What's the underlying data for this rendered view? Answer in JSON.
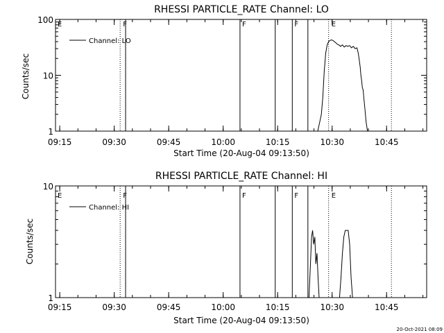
{
  "charts": [
    {
      "title": "RHESSI PARTICLE_RATE Channel: LO",
      "ylabel": "Counts/sec",
      "xlabel": "Start Time (20-Aug-04 09:13:50)",
      "legend": "Channel: LO",
      "ytick_labels": [
        "1",
        "10",
        "100"
      ],
      "xtick_labels": [
        "09:15",
        "09:30",
        "09:45",
        "10:00",
        "10:15",
        "10:30",
        "10:45"
      ]
    },
    {
      "title": "RHESSI PARTICLE_RATE Channel: HI",
      "ylabel": "Counts/sec",
      "xlabel": "Start Time (20-Aug-04 09:13:50)",
      "legend": "Channel: HI",
      "ytick_labels": [
        "1",
        "10"
      ],
      "xtick_labels": [
        "09:15",
        "09:30",
        "09:45",
        "10:00",
        "10:15",
        "10:30",
        "10:45"
      ]
    }
  ],
  "footer": "20-Oct-2021 08:09",
  "chart_data": [
    {
      "type": "line",
      "title": "RHESSI PARTICLE_RATE Channel: LO",
      "xlabel": "Start Time (20-Aug-04 09:13:50)",
      "ylabel": "Counts/sec",
      "x_unit": "minutes after 09:13:50",
      "xlim": [
        0,
        102.2
      ],
      "ylim": [
        1,
        100
      ],
      "yscale": "log",
      "xticks": [
        {
          "x": 1.17,
          "label": "09:15"
        },
        {
          "x": 16.17,
          "label": "09:30"
        },
        {
          "x": 31.17,
          "label": "09:45"
        },
        {
          "x": 46.17,
          "label": "10:00"
        },
        {
          "x": 61.17,
          "label": "10:15"
        },
        {
          "x": 76.17,
          "label": "10:30"
        },
        {
          "x": 91.17,
          "label": "10:45"
        }
      ],
      "yticks": [
        1,
        10,
        100
      ],
      "legend": {
        "position": "top-left",
        "entries": [
          "Channel: LO"
        ]
      },
      "series": [
        {
          "name": "Channel: LO",
          "x": [
            72.2,
            72.8,
            73.2,
            73.6,
            74.0,
            74.4,
            74.8,
            75.2,
            75.6,
            76.0,
            76.4,
            76.8,
            77.2,
            77.6,
            78.0,
            78.5,
            79.0,
            79.5,
            80.0,
            80.5,
            81.0,
            81.5,
            82.0,
            82.5,
            83.0,
            83.3,
            83.6,
            83.9,
            84.1,
            84.3,
            84.5,
            84.7,
            84.9,
            85.2,
            85.5,
            85.9
          ],
          "y": [
            1.0,
            1.5,
            2.0,
            4.0,
            12,
            25,
            35,
            40,
            42,
            43,
            42,
            40,
            38,
            36,
            35,
            33,
            35,
            32,
            34,
            33,
            34,
            31,
            33,
            30,
            31,
            26,
            20,
            14,
            10,
            8,
            6.0,
            5.5,
            4.0,
            2.5,
            1.5,
            1.0
          ]
        }
      ],
      "markers": {
        "solid_lines": [
          19.3,
          50.8,
          60.5,
          65.2,
          69.5
        ],
        "dotted_lines": [
          17.8,
          75.2,
          92.5
        ],
        "letters": [
          {
            "x": 0.2,
            "text": "E"
          },
          {
            "x": 18.2,
            "text": "F"
          },
          {
            "x": 51.0,
            "text": "F"
          },
          {
            "x": 65.4,
            "text": "F"
          },
          {
            "x": 75.6,
            "text": "E"
          }
        ]
      }
    },
    {
      "type": "line",
      "title": "RHESSI PARTICLE_RATE Channel: HI",
      "xlabel": "Start Time (20-Aug-04 09:13:50)",
      "ylabel": "Counts/sec",
      "x_unit": "minutes after 09:13:50",
      "xlim": [
        0,
        102.2
      ],
      "ylim": [
        1,
        10
      ],
      "yscale": "log",
      "xticks": [
        {
          "x": 1.17,
          "label": "09:15"
        },
        {
          "x": 16.17,
          "label": "09:30"
        },
        {
          "x": 31.17,
          "label": "09:45"
        },
        {
          "x": 46.17,
          "label": "10:00"
        },
        {
          "x": 61.17,
          "label": "10:15"
        },
        {
          "x": 76.17,
          "label": "10:30"
        },
        {
          "x": 91.17,
          "label": "10:45"
        }
      ],
      "yticks": [
        1,
        10
      ],
      "legend": {
        "position": "top-left",
        "entries": [
          "Channel: HI"
        ]
      },
      "series": [
        {
          "name": "Channel: HI",
          "x": [
            69.8,
            70.2,
            70.5,
            70.8,
            71.1,
            71.4,
            71.7,
            72.0,
            72.3,
            72.6
          ],
          "y": [
            1.0,
            2.0,
            3.5,
            4.0,
            3.0,
            3.5,
            2.0,
            2.5,
            1.5,
            1.0
          ]
        },
        {
          "name": "",
          "x": [
            78.2,
            78.6,
            79.0,
            79.4,
            79.8,
            80.2,
            80.6,
            81.0,
            81.4,
            81.8
          ],
          "y": [
            1.0,
            1.5,
            2.5,
            3.5,
            4.0,
            4.0,
            4.0,
            3.0,
            1.5,
            1.0
          ]
        }
      ],
      "markers": {
        "solid_lines": [
          19.3,
          50.8,
          60.5,
          65.2,
          69.5
        ],
        "dotted_lines": [
          17.8,
          75.2,
          92.5
        ],
        "letters": [
          {
            "x": 0.2,
            "text": "E"
          },
          {
            "x": 18.2,
            "text": "F"
          },
          {
            "x": 51.0,
            "text": "F"
          },
          {
            "x": 65.4,
            "text": "F"
          },
          {
            "x": 75.6,
            "text": "E"
          }
        ]
      }
    }
  ]
}
